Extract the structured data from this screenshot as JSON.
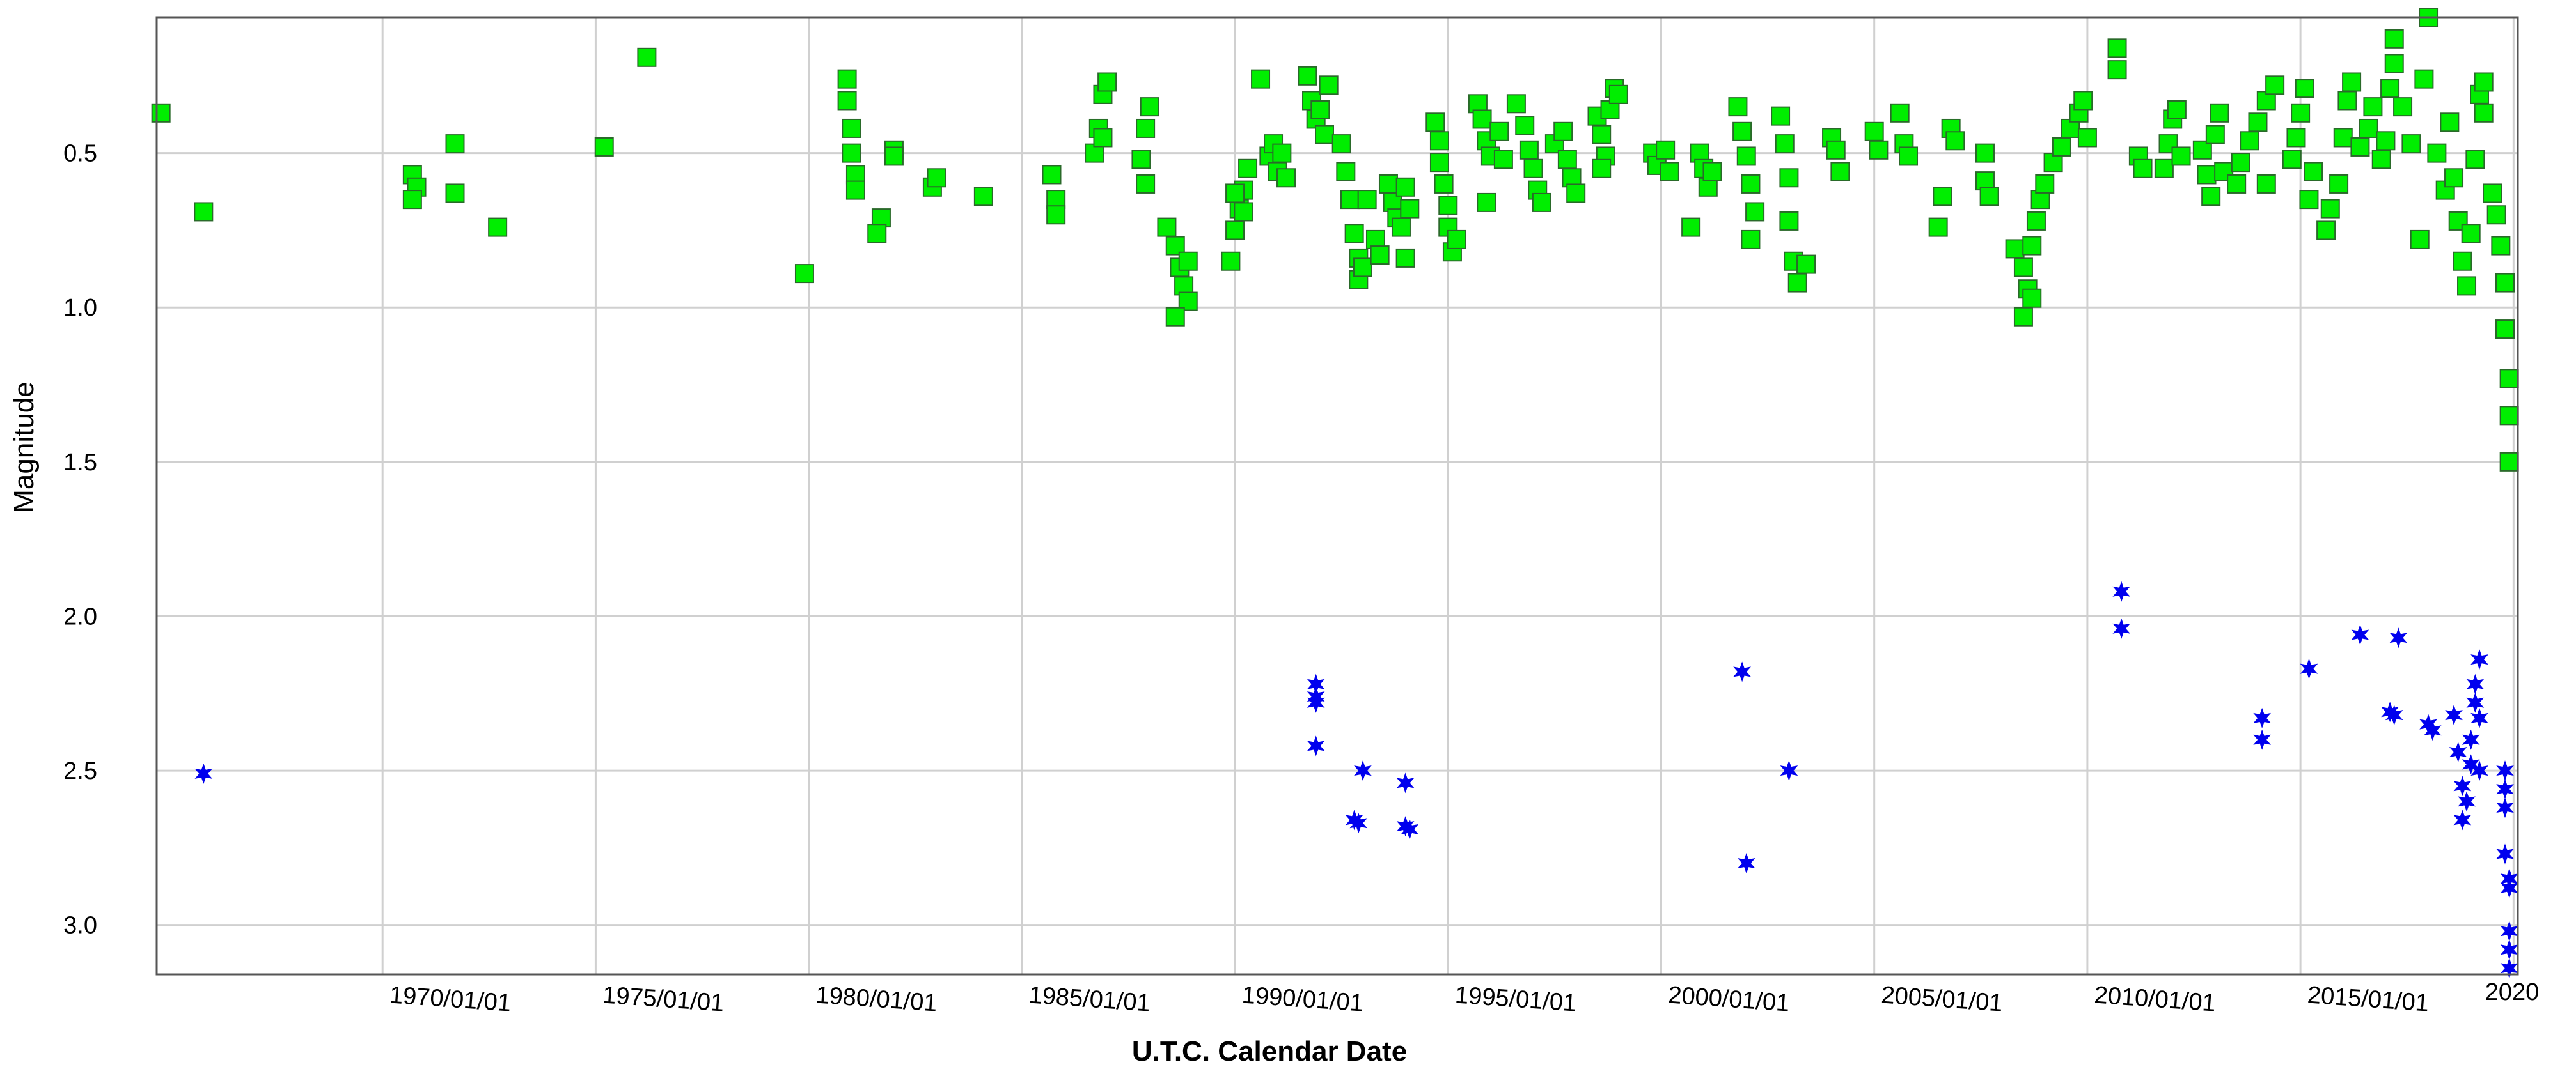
{
  "chart_data": {
    "type": "scatter",
    "title": "",
    "xlabel": "U.T.C. Calendar Date",
    "ylabel": "Magnitude",
    "x_unit": "year",
    "xlim": [
      1964.7,
      2020.1
    ],
    "ylim": [
      3.16,
      0.06
    ],
    "y_inverted": true,
    "grid": true,
    "x_ticks": [
      1970,
      1975,
      1980,
      1985,
      1990,
      1995,
      2000,
      2005,
      2010,
      2015,
      2020
    ],
    "x_tick_labels": [
      "1970/01/01",
      "1975/01/01",
      "1980/01/01",
      "1985/01/01",
      "1990/01/01",
      "1995/01/01",
      "2000/01/01",
      "2005/01/01",
      "2010/01/01",
      "2015/01/01",
      "2020"
    ],
    "y_ticks": [
      0.5,
      1.0,
      1.5,
      2.0,
      2.5,
      3.0
    ],
    "y_tick_labels": [
      "0.5",
      "1.0",
      "1.5",
      "2.0",
      "2.5",
      "3.0"
    ],
    "series": [
      {
        "marker": "square",
        "color": "#00ee00",
        "edge_color": "#2a6a2a",
        "points": [
          [
            1964.8,
            0.37
          ],
          [
            1965.8,
            0.69
          ],
          [
            1970.7,
            0.57
          ],
          [
            1970.8,
            0.61
          ],
          [
            1970.7,
            0.65
          ],
          [
            1971.7,
            0.47
          ],
          [
            1971.7,
            0.63
          ],
          [
            1972.7,
            0.74
          ],
          [
            1975.2,
            0.48
          ],
          [
            1976.2,
            0.19
          ],
          [
            1979.9,
            0.89
          ],
          [
            1980.9,
            0.26
          ],
          [
            1980.9,
            0.33
          ],
          [
            1981.0,
            0.42
          ],
          [
            1981.0,
            0.5
          ],
          [
            1981.1,
            0.57
          ],
          [
            1981.1,
            0.62
          ],
          [
            1981.7,
            0.71
          ],
          [
            1981.6,
            0.76
          ],
          [
            1982.0,
            0.49
          ],
          [
            1982.0,
            0.51
          ],
          [
            1982.9,
            0.61
          ],
          [
            1983.0,
            0.58
          ],
          [
            1984.1,
            0.64
          ],
          [
            1985.7,
            0.57
          ],
          [
            1985.8,
            0.65
          ],
          [
            1985.8,
            0.7
          ],
          [
            1986.9,
            0.31
          ],
          [
            1987.0,
            0.27
          ],
          [
            1986.8,
            0.42
          ],
          [
            1986.7,
            0.5
          ],
          [
            1986.9,
            0.45
          ],
          [
            1988.0,
            0.35
          ],
          [
            1987.9,
            0.42
          ],
          [
            1987.8,
            0.52
          ],
          [
            1987.9,
            0.6
          ],
          [
            1988.4,
            0.74
          ],
          [
            1988.6,
            0.8
          ],
          [
            1988.7,
            0.87
          ],
          [
            1988.8,
            0.93
          ],
          [
            1988.9,
            0.98
          ],
          [
            1988.9,
            0.85
          ],
          [
            1988.6,
            1.03
          ],
          [
            1989.9,
            0.85
          ],
          [
            1990.0,
            0.75
          ],
          [
            1990.1,
            0.68
          ],
          [
            1990.2,
            0.62
          ],
          [
            1990.3,
            0.55
          ],
          [
            1990.0,
            0.63
          ],
          [
            1990.2,
            0.69
          ],
          [
            1990.6,
            0.26
          ],
          [
            1990.8,
            0.51
          ],
          [
            1990.9,
            0.47
          ],
          [
            1991.0,
            0.56
          ],
          [
            1991.1,
            0.5
          ],
          [
            1991.2,
            0.58
          ],
          [
            1991.7,
            0.25
          ],
          [
            1991.8,
            0.33
          ],
          [
            1991.9,
            0.39
          ],
          [
            1992.0,
            0.36
          ],
          [
            1992.1,
            0.44
          ],
          [
            1992.2,
            0.28
          ],
          [
            1992.5,
            0.47
          ],
          [
            1992.6,
            0.56
          ],
          [
            1992.7,
            0.65
          ],
          [
            1992.8,
            0.76
          ],
          [
            1992.9,
            0.84
          ],
          [
            1992.9,
            0.91
          ],
          [
            1993.0,
            0.87
          ],
          [
            1993.1,
            0.65
          ],
          [
            1993.3,
            0.78
          ],
          [
            1993.4,
            0.83
          ],
          [
            1993.6,
            0.6
          ],
          [
            1993.7,
            0.66
          ],
          [
            1993.8,
            0.71
          ],
          [
            1993.9,
            0.74
          ],
          [
            1994.0,
            0.61
          ],
          [
            1994.1,
            0.68
          ],
          [
            1994.0,
            0.84
          ],
          [
            1994.7,
            0.4
          ],
          [
            1994.8,
            0.46
          ],
          [
            1994.8,
            0.53
          ],
          [
            1994.9,
            0.6
          ],
          [
            1995.0,
            0.67
          ],
          [
            1995.0,
            0.74
          ],
          [
            1995.1,
            0.82
          ],
          [
            1995.2,
            0.78
          ],
          [
            1995.7,
            0.34
          ],
          [
            1995.8,
            0.39
          ],
          [
            1995.9,
            0.46
          ],
          [
            1996.0,
            0.51
          ],
          [
            1995.9,
            0.66
          ],
          [
            1996.2,
            0.43
          ],
          [
            1996.3,
            0.52
          ],
          [
            1996.6,
            0.34
          ],
          [
            1996.8,
            0.41
          ],
          [
            1996.9,
            0.49
          ],
          [
            1997.0,
            0.55
          ],
          [
            1997.1,
            0.62
          ],
          [
            1997.2,
            0.66
          ],
          [
            1997.5,
            0.47
          ],
          [
            1997.7,
            0.43
          ],
          [
            1997.8,
            0.52
          ],
          [
            1997.9,
            0.58
          ],
          [
            1998.0,
            0.63
          ],
          [
            1998.5,
            0.38
          ],
          [
            1998.6,
            0.44
          ],
          [
            1998.7,
            0.51
          ],
          [
            1998.8,
            0.36
          ],
          [
            1998.9,
            0.29
          ],
          [
            1999.0,
            0.31
          ],
          [
            1998.6,
            0.55
          ],
          [
            1999.8,
            0.5
          ],
          [
            1999.9,
            0.54
          ],
          [
            2000.1,
            0.49
          ],
          [
            2000.2,
            0.56
          ],
          [
            2000.7,
            0.74
          ],
          [
            2000.9,
            0.5
          ],
          [
            2001.0,
            0.55
          ],
          [
            2001.1,
            0.61
          ],
          [
            2001.2,
            0.56
          ],
          [
            2001.8,
            0.35
          ],
          [
            2001.9,
            0.43
          ],
          [
            2002.0,
            0.51
          ],
          [
            2002.1,
            0.6
          ],
          [
            2002.2,
            0.69
          ],
          [
            2002.1,
            0.78
          ],
          [
            2002.8,
            0.38
          ],
          [
            2002.9,
            0.47
          ],
          [
            2003.0,
            0.58
          ],
          [
            2003.0,
            0.72
          ],
          [
            2003.1,
            0.85
          ],
          [
            2003.2,
            0.92
          ],
          [
            2003.4,
            0.86
          ],
          [
            2004.0,
            0.45
          ],
          [
            2004.1,
            0.49
          ],
          [
            2004.2,
            0.56
          ],
          [
            2005.0,
            0.43
          ],
          [
            2005.1,
            0.49
          ],
          [
            2005.6,
            0.37
          ],
          [
            2005.7,
            0.47
          ],
          [
            2005.8,
            0.51
          ],
          [
            2006.5,
            0.74
          ],
          [
            2006.6,
            0.64
          ],
          [
            2006.8,
            0.42
          ],
          [
            2006.9,
            0.46
          ],
          [
            2007.6,
            0.5
          ],
          [
            2007.6,
            0.59
          ],
          [
            2007.7,
            0.64
          ],
          [
            2008.3,
            0.81
          ],
          [
            2008.5,
            0.87
          ],
          [
            2008.6,
            0.94
          ],
          [
            2008.5,
            1.03
          ],
          [
            2008.7,
            0.97
          ],
          [
            2008.7,
            0.8
          ],
          [
            2008.8,
            0.72
          ],
          [
            2008.9,
            0.65
          ],
          [
            2009.0,
            0.6
          ],
          [
            2009.2,
            0.53
          ],
          [
            2009.4,
            0.48
          ],
          [
            2009.6,
            0.42
          ],
          [
            2009.8,
            0.37
          ],
          [
            2009.9,
            0.33
          ],
          [
            2010.0,
            0.45
          ],
          [
            2010.7,
            0.16
          ],
          [
            2010.7,
            0.23
          ],
          [
            2011.2,
            0.51
          ],
          [
            2011.3,
            0.55
          ],
          [
            2011.8,
            0.55
          ],
          [
            2011.9,
            0.47
          ],
          [
            2012.0,
            0.39
          ],
          [
            2012.1,
            0.36
          ],
          [
            2012.2,
            0.51
          ],
          [
            2012.7,
            0.49
          ],
          [
            2012.8,
            0.57
          ],
          [
            2012.9,
            0.64
          ],
          [
            2013.0,
            0.44
          ],
          [
            2013.1,
            0.37
          ],
          [
            2013.2,
            0.56
          ],
          [
            2013.5,
            0.6
          ],
          [
            2013.6,
            0.53
          ],
          [
            2013.8,
            0.46
          ],
          [
            2014.0,
            0.4
          ],
          [
            2014.2,
            0.33
          ],
          [
            2014.4,
            0.28
          ],
          [
            2014.2,
            0.6
          ],
          [
            2014.8,
            0.52
          ],
          [
            2014.9,
            0.45
          ],
          [
            2015.0,
            0.37
          ],
          [
            2015.1,
            0.29
          ],
          [
            2015.2,
            0.65
          ],
          [
            2015.3,
            0.56
          ],
          [
            2015.6,
            0.75
          ],
          [
            2015.7,
            0.68
          ],
          [
            2015.9,
            0.6
          ],
          [
            2016.0,
            0.45
          ],
          [
            2016.1,
            0.33
          ],
          [
            2016.2,
            0.27
          ],
          [
            2016.4,
            0.48
          ],
          [
            2016.6,
            0.42
          ],
          [
            2016.7,
            0.35
          ],
          [
            2016.9,
            0.52
          ],
          [
            2017.0,
            0.46
          ],
          [
            2017.1,
            0.29
          ],
          [
            2017.2,
            0.21
          ],
          [
            2017.2,
            0.13
          ],
          [
            2017.4,
            0.35
          ],
          [
            2017.6,
            0.47
          ],
          [
            2017.8,
            0.78
          ],
          [
            2017.9,
            0.26
          ],
          [
            2018.0,
            0.06
          ],
          [
            2018.2,
            0.5
          ],
          [
            2018.4,
            0.62
          ],
          [
            2018.5,
            0.4
          ],
          [
            2018.6,
            0.58
          ],
          [
            2018.7,
            0.72
          ],
          [
            2018.8,
            0.85
          ],
          [
            2018.9,
            0.93
          ],
          [
            2019.0,
            0.76
          ],
          [
            2019.1,
            0.52
          ],
          [
            2019.2,
            0.31
          ],
          [
            2019.3,
            0.27
          ],
          [
            2019.3,
            0.37
          ],
          [
            2019.5,
            0.63
          ],
          [
            2019.6,
            0.7
          ],
          [
            2019.7,
            0.8
          ],
          [
            2019.8,
            0.92
          ],
          [
            2019.8,
            1.07
          ],
          [
            2019.9,
            1.23
          ],
          [
            2019.9,
            1.35
          ],
          [
            2019.9,
            1.5
          ]
        ]
      },
      {
        "marker": "star",
        "color": "#0000ee",
        "points": [
          [
            1965.8,
            2.51
          ],
          [
            1991.9,
            2.22
          ],
          [
            1991.9,
            2.26
          ],
          [
            1991.9,
            2.28
          ],
          [
            1991.9,
            2.42
          ],
          [
            1992.8,
            2.66
          ],
          [
            1992.9,
            2.67
          ],
          [
            1993.0,
            2.5
          ],
          [
            1994.0,
            2.54
          ],
          [
            1994.0,
            2.68
          ],
          [
            1994.1,
            2.69
          ],
          [
            2001.9,
            2.18
          ],
          [
            2002.0,
            2.8
          ],
          [
            2003.0,
            2.5
          ],
          [
            2010.8,
            1.92
          ],
          [
            2010.8,
            2.04
          ],
          [
            2014.1,
            2.33
          ],
          [
            2014.1,
            2.4
          ],
          [
            2015.2,
            2.17
          ],
          [
            2016.4,
            2.06
          ],
          [
            2017.1,
            2.31
          ],
          [
            2017.2,
            2.32
          ],
          [
            2017.3,
            2.07
          ],
          [
            2018.0,
            2.35
          ],
          [
            2018.1,
            2.37
          ],
          [
            2018.6,
            2.32
          ],
          [
            2018.7,
            2.44
          ],
          [
            2018.8,
            2.55
          ],
          [
            2018.9,
            2.6
          ],
          [
            2018.8,
            2.66
          ],
          [
            2019.0,
            2.48
          ],
          [
            2019.0,
            2.4
          ],
          [
            2019.1,
            2.28
          ],
          [
            2019.1,
            2.22
          ],
          [
            2019.2,
            2.14
          ],
          [
            2019.2,
            2.33
          ],
          [
            2019.2,
            2.5
          ],
          [
            2019.8,
            2.5
          ],
          [
            2019.8,
            2.56
          ],
          [
            2019.8,
            2.62
          ],
          [
            2019.8,
            2.77
          ],
          [
            2019.9,
            2.85
          ],
          [
            2019.9,
            2.88
          ],
          [
            2019.9,
            3.02
          ],
          [
            2019.9,
            3.08
          ],
          [
            2019.9,
            3.14
          ]
        ]
      }
    ]
  }
}
